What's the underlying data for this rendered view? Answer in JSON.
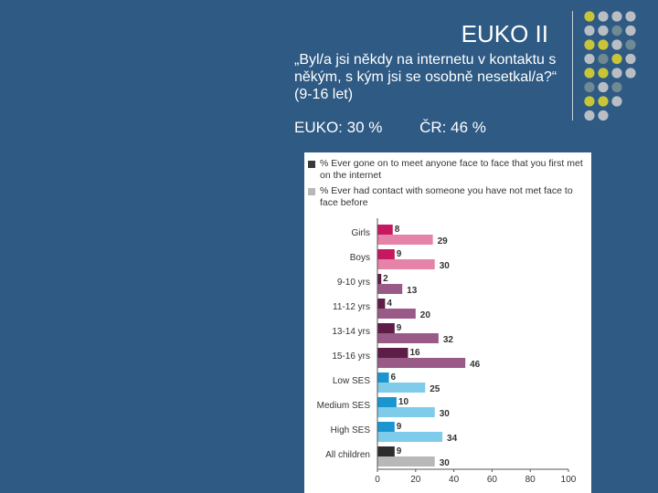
{
  "slide": {
    "title": "EUKO II",
    "question": "„Byl/a jsi někdy na internetu v kontaktu s někým, s kým jsi se osobně nesetkal/a?“ (9-16 let)",
    "stat_euko": "EUKO: 30 %",
    "stat_cr": "ČR: 46 %"
  },
  "colors": {
    "background": "#2e5a84",
    "dot_gray": "#b9bec4",
    "dot_olive": "#c9c538",
    "dot_teal": "#6f8a93"
  },
  "chart_data": {
    "type": "bar",
    "orientation": "horizontal",
    "categories": [
      "Girls",
      "Boys",
      "9-10 yrs",
      "11-12 yrs",
      "13-14 yrs",
      "15-16 yrs",
      "Low SES",
      "Medium SES",
      "High SES",
      "All children"
    ],
    "series": [
      {
        "name": "% Ever gone on to meet anyone face to face that you first met on the internet",
        "values": [
          8,
          9,
          2,
          4,
          9,
          16,
          6,
          10,
          9,
          9
        ]
      },
      {
        "name": "% Ever had contact with someone you have not met face to face before",
        "values": [
          29,
          30,
          13,
          20,
          32,
          46,
          25,
          30,
          34,
          30
        ]
      }
    ],
    "colors_first": [
      "#c6185e",
      "#c6185e",
      "#5d1d47",
      "#5d1d47",
      "#5d1d47",
      "#5d1d47",
      "#1b95d0",
      "#1b95d0",
      "#1b95d0",
      "#2d2d2d"
    ],
    "colors_second": [
      "#e584a8",
      "#e584a8",
      "#9a5a88",
      "#9a5a88",
      "#9a5a88",
      "#9a5a88",
      "#7ecbea",
      "#7ecbea",
      "#7ecbea",
      "#b8b8b8"
    ],
    "xlim": [
      0,
      100
    ],
    "xticks": [
      0,
      20,
      40,
      60,
      80,
      100
    ],
    "xlabel": "",
    "ylabel": "",
    "legend_position": "top",
    "grid": false
  }
}
